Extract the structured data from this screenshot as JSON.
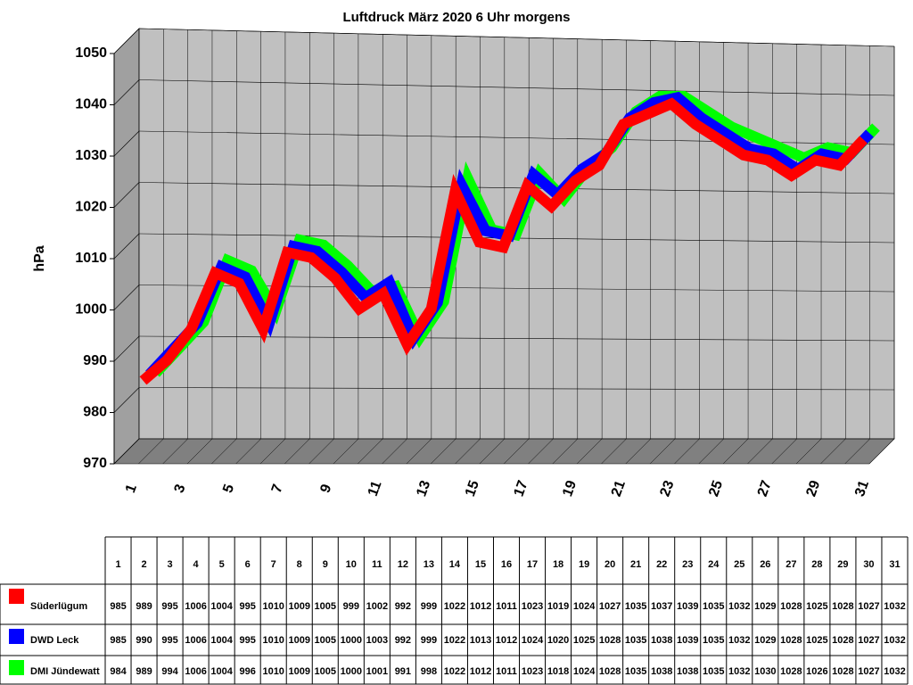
{
  "chart_data": {
    "type": "line",
    "title": "Luftdruck März 2020 6 Uhr morgens",
    "y_label": "hPa",
    "categories": [
      "1",
      "2",
      "3",
      "4",
      "5",
      "6",
      "7",
      "8",
      "9",
      "10",
      "11",
      "12",
      "13",
      "14",
      "15",
      "16",
      "17",
      "18",
      "19",
      "20",
      "21",
      "22",
      "23",
      "24",
      "25",
      "26",
      "27",
      "28",
      "29",
      "30",
      "31"
    ],
    "ylim": [
      970,
      1050
    ],
    "yticks": [
      970,
      980,
      990,
      1000,
      1010,
      1020,
      1030,
      1040,
      1050
    ],
    "grid": true,
    "series": [
      {
        "name": "Süderlügum",
        "color": "#ff0000",
        "values": [
          985,
          989,
          995,
          1006,
          1004,
          995,
          1010,
          1009,
          1005,
          999,
          1002,
          992,
          999,
          1022,
          1012,
          1011,
          1023,
          1019,
          1024,
          1027,
          1035,
          1037,
          1039,
          1035,
          1032,
          1029,
          1028,
          1025,
          1028,
          1027,
          1032
        ]
      },
      {
        "name": "DWD Leck",
        "color": "#0000ff",
        "values": [
          985,
          990,
          995,
          1006,
          1004,
          995,
          1010,
          1009,
          1005,
          1000,
          1003,
          992,
          999,
          1022,
          1013,
          1012,
          1024,
          1020,
          1025,
          1028,
          1035,
          1038,
          1039,
          1035,
          1032,
          1029,
          1028,
          1025,
          1028,
          1027,
          1032
        ]
      },
      {
        "name": "DMI Jündewatt",
        "color": "#00ff00",
        "values": [
          984,
          989,
          994,
          1006,
          1004,
          996,
          1010,
          1009,
          1005,
          1000,
          1001,
          991,
          998,
          1022,
          1012,
          1011,
          1023,
          1018,
          1024,
          1028,
          1035,
          1038,
          1038,
          1035,
          1032,
          1030,
          1028,
          1026,
          1028,
          1027,
          1032
        ]
      }
    ]
  }
}
